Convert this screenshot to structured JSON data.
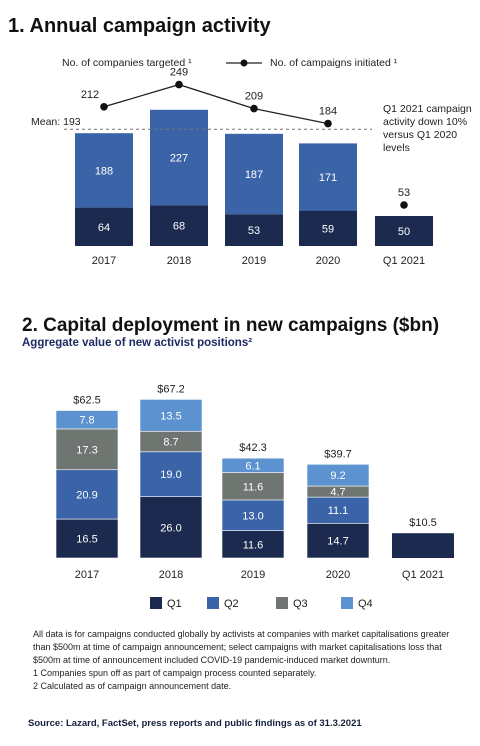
{
  "chart_data": [
    {
      "type": "bar",
      "title": "1. Annual campaign activity",
      "categories": [
        "2017",
        "2018",
        "2019",
        "2020",
        "Q1 2021"
      ],
      "series": [
        {
          "name": "No. of companies targeted ¹",
          "stacked": [
            64,
            68,
            53,
            59,
            50
          ],
          "total": [
            188,
            227,
            187,
            171,
            null
          ],
          "colors": [
            "#1b2a4e",
            "#3a63a8"
          ]
        },
        {
          "name": "No. of campaigns initiated ¹",
          "type": "line",
          "values": [
            212,
            249,
            209,
            184,
            53
          ]
        }
      ],
      "mean": {
        "label": "Mean: 193",
        "value": 193
      },
      "annotation": [
        "Q1 2021 campaign",
        "activity down 10%",
        "versus Q1 2020",
        "levels"
      ]
    },
    {
      "type": "bar",
      "title": "2. Capital deployment in new campaigns ($bn)",
      "subtitle": "Aggregate value of new activist positions²",
      "categories": [
        "2017",
        "2018",
        "2019",
        "2020",
        "Q1 2021"
      ],
      "series": [
        {
          "name": "Q1",
          "color": "#1b2a4e",
          "values": [
            16.5,
            26.0,
            11.6,
            14.7,
            null
          ]
        },
        {
          "name": "Q2",
          "color": "#3a63a8",
          "values": [
            20.9,
            19.0,
            13.0,
            11.1,
            null
          ]
        },
        {
          "name": "Q3",
          "color": "#6f7671",
          "values": [
            17.3,
            8.7,
            11.6,
            4.7,
            null
          ]
        },
        {
          "name": "Q4",
          "color": "#5b92cf",
          "values": [
            7.8,
            13.5,
            6.1,
            9.2,
            null
          ]
        }
      ],
      "totals": [
        "$62.5",
        "$67.2",
        "$42.3",
        "$39.7",
        "$10.5"
      ],
      "total_values": [
        62.5,
        67.2,
        42.3,
        39.7,
        10.5
      ]
    }
  ],
  "notes": [
    "All data is for campaigns conducted globally by activists at companies with market capitalisations greater than $500m at time of campaign announcement; select campaigns with market capitalisations loss that $500m at time of announcement included COVID-19 pandemic-induced market downturn.",
    "1 Companies spun off as part of campaign process counted separately.",
    "2 Calculated as of campaign announcement date."
  ],
  "source": "Source: Lazard, FactSet, press reports and public findings as of 31.3.2021"
}
